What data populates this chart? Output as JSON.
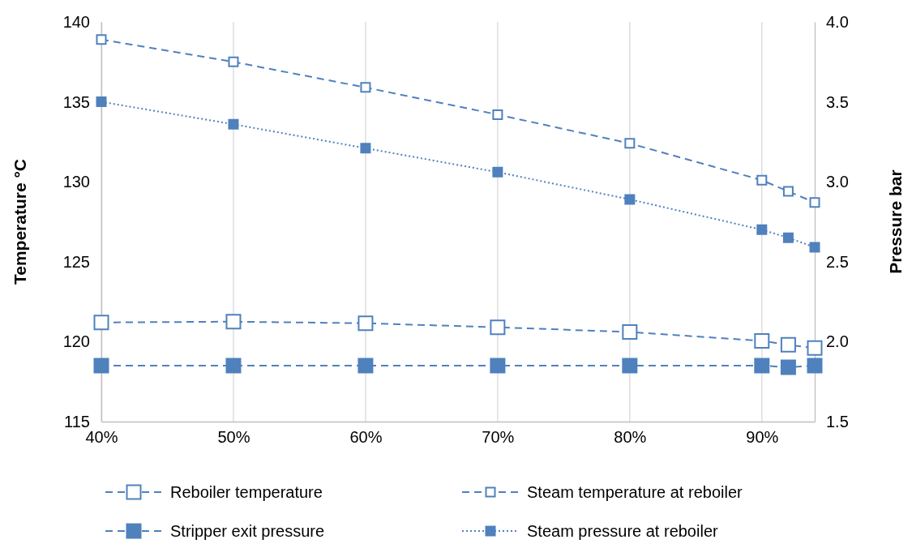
{
  "chart_data": {
    "type": "line",
    "xlabel": null,
    "ylabel": "Temperature °C",
    "y2label": "Pressure bar",
    "x": [
      40,
      50,
      60,
      70,
      80,
      90,
      92,
      94
    ],
    "xlim": [
      40,
      94
    ],
    "xticks": [
      {
        "value": 40,
        "label": "40%"
      },
      {
        "value": 50,
        "label": "50%"
      },
      {
        "value": 60,
        "label": "60%"
      },
      {
        "value": 70,
        "label": "70%"
      },
      {
        "value": 80,
        "label": "80%"
      },
      {
        "value": 90,
        "label": "90%"
      }
    ],
    "ylim": [
      115,
      140
    ],
    "yticks": [
      115,
      120,
      125,
      130,
      135,
      140
    ],
    "y2lim": [
      1.5,
      4.0
    ],
    "y2ticks": [
      {
        "value": 1.5,
        "label": "1.5"
      },
      {
        "value": 2.0,
        "label": "2.0"
      },
      {
        "value": 2.5,
        "label": "2.5"
      },
      {
        "value": 3.0,
        "label": "3.0"
      },
      {
        "value": 3.5,
        "label": "3.5"
      },
      {
        "value": 4.0,
        "label": "4.0"
      }
    ],
    "grid": "x",
    "legend": "bottom",
    "marker": "square",
    "series": [
      {
        "name": "Reboiler temperature",
        "color": "#4f81bd",
        "line_style": "dashed",
        "values": [
          121.2,
          121.25,
          121.15,
          120.9,
          120.6,
          120.05,
          119.8,
          119.6
        ]
      },
      {
        "name": "Steam temperature at reboiler",
        "color": "#4f81bd",
        "line_style": "dashed",
        "values": [
          138.9,
          137.5,
          135.9,
          134.2,
          132.4,
          130.1,
          129.4,
          128.7
        ]
      },
      {
        "name": "Stripper exit pressure",
        "color": "#4f81bd",
        "axis": "y2",
        "line_style": "dashed",
        "values": [
          1.85,
          1.85,
          1.85,
          1.85,
          1.85,
          1.85,
          1.84,
          1.85
        ]
      },
      {
        "name": "Steam pressure at reboiler",
        "color": "#4f81bd",
        "axis": "y2",
        "line_style": "dotted",
        "values": [
          3.5,
          3.36,
          3.21,
          3.06,
          2.89,
          2.7,
          2.65,
          2.59
        ]
      }
    ]
  }
}
